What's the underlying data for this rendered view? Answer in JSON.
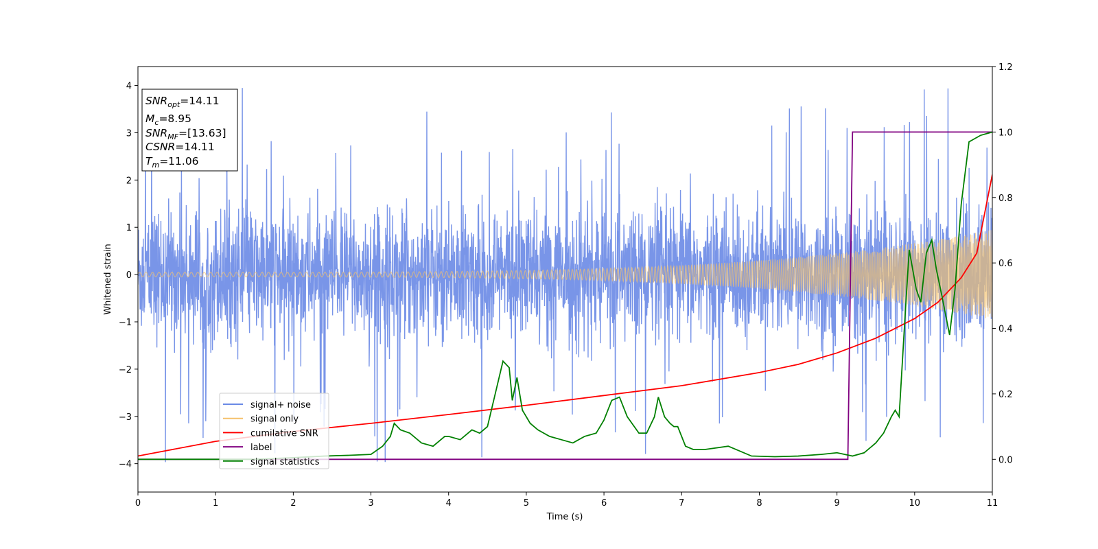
{
  "chart_data": {
    "type": "line",
    "xlabel": "Time (s)",
    "ylabel": "Whitened strain",
    "xlim": [
      0,
      11
    ],
    "ylim": [
      -4.6,
      4.4
    ],
    "y2lim": [
      -0.1,
      1.2
    ],
    "xticks": [
      "0",
      "1",
      "2",
      "3",
      "4",
      "5",
      "6",
      "7",
      "8",
      "9",
      "10",
      "11"
    ],
    "yticks": [
      "−4",
      "−3",
      "−2",
      "−1",
      "0",
      "1",
      "2",
      "3",
      "4"
    ],
    "y2ticks": [
      "0.0",
      "0.2",
      "0.4",
      "0.6",
      "0.8",
      "1.0",
      "1.2"
    ],
    "grid": false,
    "legend_position": "lower-left",
    "legend": [
      {
        "label": "signal+ noise",
        "color": "#6a8ae6"
      },
      {
        "label": "signal only",
        "color": "#f5c16c"
      },
      {
        "label": "cumilative SNR",
        "color": "#ff0000"
      },
      {
        "label": "label",
        "color": "#800080"
      },
      {
        "label": "signal statistics",
        "color": "#008000"
      }
    ],
    "info_box": {
      "snr_opt": {
        "name": "SNR",
        "sub": "opt",
        "value": "=14.11"
      },
      "mc": {
        "name": "M",
        "sub": "c",
        "value": "=8.95"
      },
      "snr_mf": {
        "name": "SNR",
        "sub": "MF",
        "value": "=[13.63]"
      },
      "csnr": {
        "name": "CSNR",
        "value": "=14.11"
      },
      "tm": {
        "name": "T",
        "sub": "m",
        "value": "=11.06"
      }
    },
    "series": [
      {
        "name": "signal+ noise",
        "axis": "left",
        "color": "#6a8ae6",
        "description": "whitened noise, approx. +/-1.5 envelope with spikes up to about +/-4",
        "amplitude_typical": 1.5,
        "amplitude_peak": 4.0,
        "x_range": [
          0,
          11
        ]
      },
      {
        "name": "signal only",
        "axis": "left",
        "color": "#f5c16c",
        "description": "chirp with amplitude growing from ~0.05 at t=0 to ~0.95 at t=11",
        "amplitude_start": 0.05,
        "amplitude_end": 0.95,
        "x_range": [
          0,
          11
        ]
      },
      {
        "name": "cumilative SNR",
        "axis": "right",
        "color": "#ff0000",
        "x": [
          0,
          1,
          2,
          3,
          4,
          5,
          6,
          7,
          8,
          8.5,
          9,
          9.5,
          10,
          10.3,
          10.6,
          10.8,
          11
        ],
        "y": [
          0.01,
          0.055,
          0.085,
          0.11,
          0.137,
          0.165,
          0.195,
          0.225,
          0.265,
          0.29,
          0.325,
          0.37,
          0.43,
          0.48,
          0.555,
          0.63,
          0.87
        ]
      },
      {
        "name": "label",
        "axis": "right",
        "color": "#800080",
        "x": [
          0,
          9.14,
          9.2,
          11
        ],
        "y": [
          0,
          0,
          1,
          1
        ]
      },
      {
        "name": "signal statistics",
        "axis": "right",
        "color": "#008000",
        "x": [
          0,
          0.5,
          1,
          1.5,
          2,
          2.4,
          2.7,
          3.0,
          3.15,
          3.25,
          3.3,
          3.38,
          3.5,
          3.65,
          3.8,
          3.95,
          4.0,
          4.15,
          4.3,
          4.4,
          4.5,
          4.6,
          4.7,
          4.78,
          4.82,
          4.88,
          4.95,
          5.05,
          5.15,
          5.3,
          5.45,
          5.6,
          5.75,
          5.9,
          6.0,
          6.1,
          6.2,
          6.3,
          6.45,
          6.55,
          6.65,
          6.7,
          6.78,
          6.85,
          6.9,
          6.95,
          7.05,
          7.15,
          7.3,
          7.6,
          7.9,
          8.2,
          8.5,
          8.8,
          9.0,
          9.2,
          9.35,
          9.5,
          9.6,
          9.7,
          9.75,
          9.8,
          9.88,
          9.93,
          10.02,
          10.08,
          10.15,
          10.22,
          10.28,
          10.35,
          10.45,
          10.52,
          10.6,
          10.7,
          10.85,
          11
        ],
        "y": [
          0.0,
          0.0,
          0.0,
          0.0,
          0.005,
          0.01,
          0.012,
          0.015,
          0.04,
          0.07,
          0.11,
          0.09,
          0.08,
          0.05,
          0.04,
          0.07,
          0.07,
          0.06,
          0.09,
          0.08,
          0.1,
          0.2,
          0.3,
          0.28,
          0.18,
          0.25,
          0.15,
          0.11,
          0.09,
          0.07,
          0.06,
          0.05,
          0.07,
          0.08,
          0.12,
          0.18,
          0.19,
          0.13,
          0.08,
          0.08,
          0.13,
          0.19,
          0.13,
          0.11,
          0.1,
          0.1,
          0.04,
          0.03,
          0.03,
          0.04,
          0.01,
          0.008,
          0.01,
          0.015,
          0.02,
          0.01,
          0.02,
          0.05,
          0.08,
          0.13,
          0.15,
          0.13,
          0.45,
          0.64,
          0.52,
          0.48,
          0.63,
          0.67,
          0.58,
          0.5,
          0.38,
          0.52,
          0.78,
          0.97,
          0.99,
          1.0
        ]
      }
    ]
  }
}
